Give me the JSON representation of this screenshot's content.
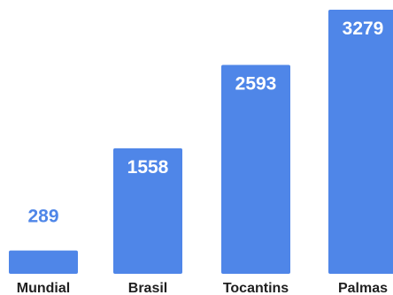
{
  "chart_data": {
    "type": "bar",
    "title": "",
    "xlabel": "",
    "ylabel": "",
    "categories": [
      "Mundial",
      "Brasil",
      "Tocantins",
      "Palmas"
    ],
    "values": [
      289,
      1558,
      2593,
      3279
    ],
    "value_labels": [
      "289",
      "1558",
      "2593",
      "3279"
    ],
    "ylim": [
      0,
      3279
    ],
    "grid": false,
    "legend": "none",
    "colors": {
      "bar": "#4f86e8",
      "outside_label": "#4f86e8",
      "inside_label": "#ffffff",
      "category_label": "#1f1f1f"
    }
  }
}
